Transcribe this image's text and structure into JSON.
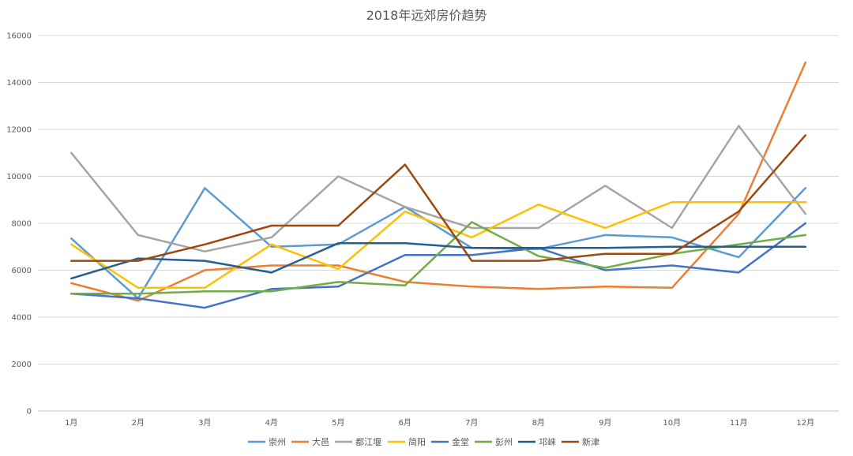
{
  "chart_data": {
    "type": "line",
    "title": "2018年远郊房价趋势",
    "xlabel": "",
    "ylabel": "",
    "categories": [
      "1月",
      "2月",
      "3月",
      "4月",
      "5月",
      "6月",
      "7月",
      "8月",
      "9月",
      "10月",
      "11月",
      "12月"
    ],
    "ylim": [
      0,
      16000
    ],
    "yticks": [
      0,
      2000,
      4000,
      6000,
      8000,
      10000,
      12000,
      14000,
      16000
    ],
    "grid": true,
    "legend": "bottom",
    "series": [
      {
        "name": "崇州",
        "color": "#5b9bd5",
        "values": [
          7350,
          4800,
          9500,
          7000,
          7100,
          8700,
          6950,
          6900,
          7500,
          7400,
          6550,
          9500
        ]
      },
      {
        "name": "大邑",
        "color": "#ed7d31",
        "values": [
          5450,
          4700,
          6000,
          6200,
          6200,
          5500,
          5300,
          5200,
          5300,
          5250,
          8400,
          14850
        ]
      },
      {
        "name": "都江堰",
        "color": "#a5a5a5",
        "values": [
          11000,
          7500,
          6800,
          7400,
          10000,
          8700,
          7800,
          7800,
          9600,
          7800,
          12150,
          8400
        ]
      },
      {
        "name": "简阳",
        "color": "#ffc000",
        "values": [
          7100,
          5250,
          5250,
          7100,
          6050,
          8500,
          7400,
          8800,
          7800,
          8900,
          8900,
          8900
        ]
      },
      {
        "name": "金堂",
        "color": "#4472c4",
        "values": [
          5000,
          4800,
          4400,
          5200,
          5300,
          6650,
          6650,
          6950,
          6000,
          6200,
          5900,
          8000
        ]
      },
      {
        "name": "彭州",
        "color": "#70ad47",
        "values": [
          5000,
          5000,
          5100,
          5100,
          5500,
          5350,
          8050,
          6600,
          6100,
          6700,
          7100,
          7500
        ]
      },
      {
        "name": "邛崃",
        "color": "#255e91",
        "values": [
          5650,
          6500,
          6400,
          5900,
          7150,
          7150,
          6950,
          6950,
          6950,
          7000,
          7000,
          7000
        ]
      },
      {
        "name": "新津",
        "color": "#9e480e",
        "values": [
          6400,
          6400,
          7100,
          7900,
          7900,
          10500,
          6400,
          6400,
          6700,
          6700,
          8500,
          11750
        ]
      }
    ]
  }
}
